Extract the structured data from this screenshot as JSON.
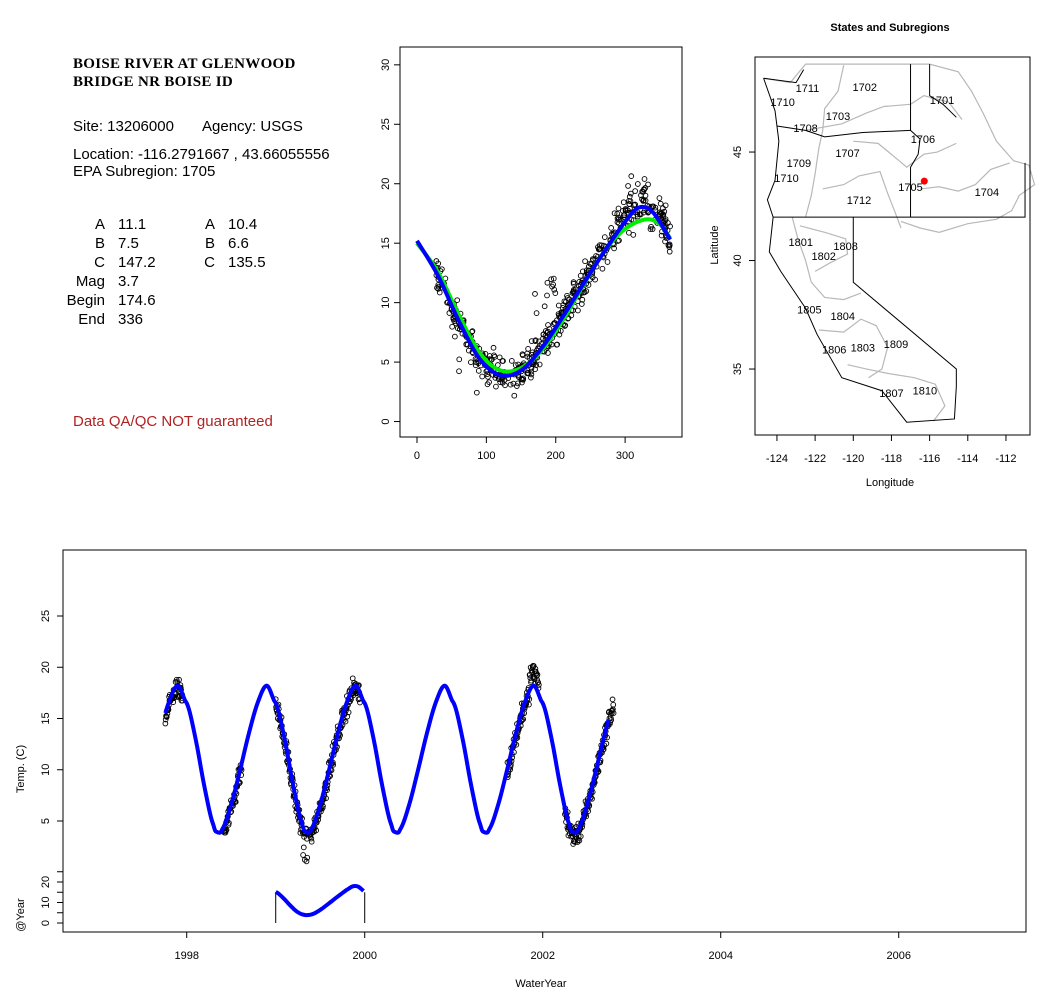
{
  "site_panel": {
    "title_line1": "BOISE RIVER AT GLENWOOD",
    "title_line2": "BRIDGE NR BOISE ID",
    "site": "Site: 13206000",
    "agency": "Agency: USGS",
    "location": "Location: -116.2791667 , 43.66055556",
    "subregion": "EPA Subregion: 1705",
    "params_left": [
      {
        "label": "A",
        "value": "11.1"
      },
      {
        "label": "B",
        "value": "7.5"
      },
      {
        "label": "C",
        "value": "147.2"
      },
      {
        "label": "Mag",
        "value": "3.7"
      },
      {
        "label": "Begin",
        "value": "174.6"
      },
      {
        "label": "End",
        "value": "336"
      }
    ],
    "params_right": [
      {
        "label": "A",
        "value": "10.4"
      },
      {
        "label": "B",
        "value": "6.6"
      },
      {
        "label": "C",
        "value": "135.5"
      }
    ],
    "qa_note": "Data QA/QC NOT guaranteed",
    "qa_color": "#b22222"
  },
  "chart_data": [
    {
      "type": "scatter",
      "name": "day-of-year temperature",
      "xlabel": "",
      "ylabel": "",
      "xlim": [
        -24.5,
        382
      ],
      "ylim": [
        -1.3,
        31.5
      ],
      "xticks": [
        "0",
        "100",
        "200",
        "300"
      ],
      "xtick_values": [
        0,
        100,
        200,
        300
      ],
      "yticks": [
        "0",
        "5",
        "10",
        "15",
        "20",
        "25",
        "30"
      ],
      "ytick_values": [
        0,
        5,
        10,
        15,
        20,
        25,
        30
      ],
      "points_note_range_days": [
        25,
        365
      ],
      "series": [
        {
          "name": "fit-blue",
          "color": "#0000ff",
          "x": [
            0,
            30,
            60,
            90,
            120,
            150,
            180,
            210,
            240,
            270,
            300,
            320,
            340,
            365
          ],
          "y": [
            15.2,
            12.3,
            8.5,
            5.3,
            3.9,
            4.3,
            6.2,
            8.8,
            11.6,
            14.3,
            16.8,
            18.0,
            17.6,
            15.3
          ]
        },
        {
          "name": "fit-green",
          "color": "#00ee00",
          "x": [
            0,
            30,
            60,
            90,
            120,
            150,
            180,
            210,
            240,
            270,
            300,
            330,
            350,
            365
          ],
          "y": [
            15.0,
            12.6,
            9.0,
            5.8,
            4.3,
            4.5,
            6.0,
            8.5,
            11.5,
            14.3,
            16.2,
            17.0,
            16.6,
            15.4
          ]
        }
      ]
    },
    {
      "type": "map",
      "title": "States and Subregions",
      "xlabel": "Longitude",
      "ylabel": "Latitude",
      "xlim": [
        -125.15,
        -110.74
      ],
      "ylim": [
        31.96,
        49.38
      ],
      "xticks": [
        "-124",
        "-122",
        "-120",
        "-118",
        "-116",
        "-114",
        "-112"
      ],
      "xtick_values": [
        -124,
        -122,
        -120,
        -118,
        -116,
        -114,
        -112
      ],
      "yticks": [
        "35",
        "40",
        "45"
      ],
      "ytick_values": [
        35,
        40,
        45
      ],
      "site": {
        "lon": -116.2791667,
        "lat": 43.66055556,
        "color": "#ff0000"
      },
      "regions": [
        {
          "label": "1711",
          "lon": -122.4,
          "lat": 47.95
        },
        {
          "label": "1702",
          "lon": -119.4,
          "lat": 48.0
        },
        {
          "label": "1701",
          "lon": -115.35,
          "lat": 47.4
        },
        {
          "label": "1710",
          "lon": -123.7,
          "lat": 47.3
        },
        {
          "label": "1703",
          "lon": -120.8,
          "lat": 46.66
        },
        {
          "label": "1708",
          "lon": -122.5,
          "lat": 46.1
        },
        {
          "label": "1706",
          "lon": -116.35,
          "lat": 45.6
        },
        {
          "label": "1707",
          "lon": -120.3,
          "lat": 44.95
        },
        {
          "label": "1709",
          "lon": -122.85,
          "lat": 44.5
        },
        {
          "label": "1710",
          "lon": -123.5,
          "lat": 43.8
        },
        {
          "label": "1705",
          "lon": -117.0,
          "lat": 43.4
        },
        {
          "label": "1704",
          "lon": -113.0,
          "lat": 43.15
        },
        {
          "label": "1712",
          "lon": -119.7,
          "lat": 42.8
        },
        {
          "label": "1801",
          "lon": -122.75,
          "lat": 40.85
        },
        {
          "label": "1808",
          "lon": -120.4,
          "lat": 40.67
        },
        {
          "label": "1802",
          "lon": -121.55,
          "lat": 40.2
        },
        {
          "label": "1805",
          "lon": -122.3,
          "lat": 37.75
        },
        {
          "label": "1804",
          "lon": -120.55,
          "lat": 37.44
        },
        {
          "label": "1806",
          "lon": -121.0,
          "lat": 35.9
        },
        {
          "label": "1803",
          "lon": -119.5,
          "lat": 36.0
        },
        {
          "label": "1809",
          "lon": -117.76,
          "lat": 36.15
        },
        {
          "label": "1807",
          "lon": -118.0,
          "lat": 33.9
        },
        {
          "label": "1810",
          "lon": -116.25,
          "lat": 34.0
        }
      ]
    },
    {
      "type": "line",
      "name": "time series",
      "xlabel": "WaterYear",
      "ylabel": "Temp. (C)",
      "ylabel2": "@Year",
      "xlim": [
        1996.61,
        2007.43
      ],
      "xticks": [
        "1998",
        "2000",
        "2002",
        "2004",
        "2006"
      ],
      "xtick_values": [
        1998,
        2000,
        2002,
        2004,
        2006
      ],
      "yticks": [
        "5",
        "10",
        "15",
        "20",
        "25"
      ],
      "ytick_values": [
        5,
        10,
        15,
        20,
        25
      ],
      "yticks2": [
        "0",
        "10",
        "20"
      ],
      "ytick2_values": [
        0,
        10,
        20
      ],
      "fit_color": "#0000ff",
      "fit_range": [
        1997.76,
        2002.75
      ],
      "seasonal_fraction": [
        0.0,
        0.1,
        0.2,
        0.3,
        0.35,
        0.4,
        0.5,
        0.6,
        0.7,
        0.8,
        0.9,
        1.0
      ],
      "seasonal_temp": [
        16.5,
        13.0,
        8.3,
        4.6,
        3.9,
        4.2,
        6.6,
        10.0,
        13.6,
        16.6,
        18.2,
        16.5
      ],
      "observed_spans": [
        [
          1997.76,
          1997.96
        ],
        [
          1998.42,
          1998.62
        ],
        [
          1999.0,
          1999.95
        ],
        [
          2001.6,
          2001.96
        ],
        [
          2002.25,
          2002.8
        ]
      ],
      "year_inset_range": [
        1999.0,
        2000.0
      ]
    }
  ]
}
